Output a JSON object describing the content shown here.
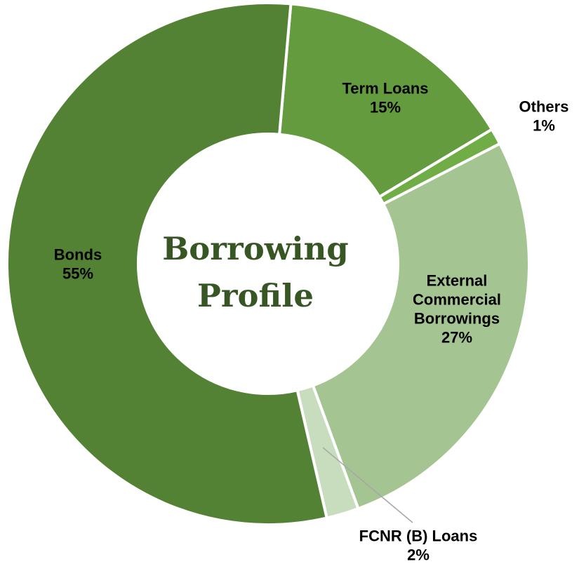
{
  "chart_data": {
    "type": "pie",
    "variant": "donut",
    "center_title": [
      "Borrowing",
      "Profile"
    ],
    "slices": [
      {
        "name": "Term Loans",
        "value": 15,
        "label_lines": [
          "Term Loans",
          "15%"
        ],
        "color": "#649B3E"
      },
      {
        "name": "Others",
        "value": 1,
        "label_lines": [
          "Others",
          "1%"
        ],
        "color": "#70AD47"
      },
      {
        "name": "External Commercial Borrowings",
        "value": 27,
        "label_lines": [
          "External",
          "Commercial",
          "Borrowings",
          "27%"
        ],
        "color": "#A4C591"
      },
      {
        "name": "FCNR (B) Loans",
        "value": 2,
        "label_lines": [
          "FCNR (B) Loans",
          "2%"
        ],
        "color": "#C8DDBD"
      },
      {
        "name": "Bonds",
        "value": 55,
        "label_lines": [
          "Bonds",
          "55%"
        ],
        "color": "#548235"
      }
    ]
  }
}
